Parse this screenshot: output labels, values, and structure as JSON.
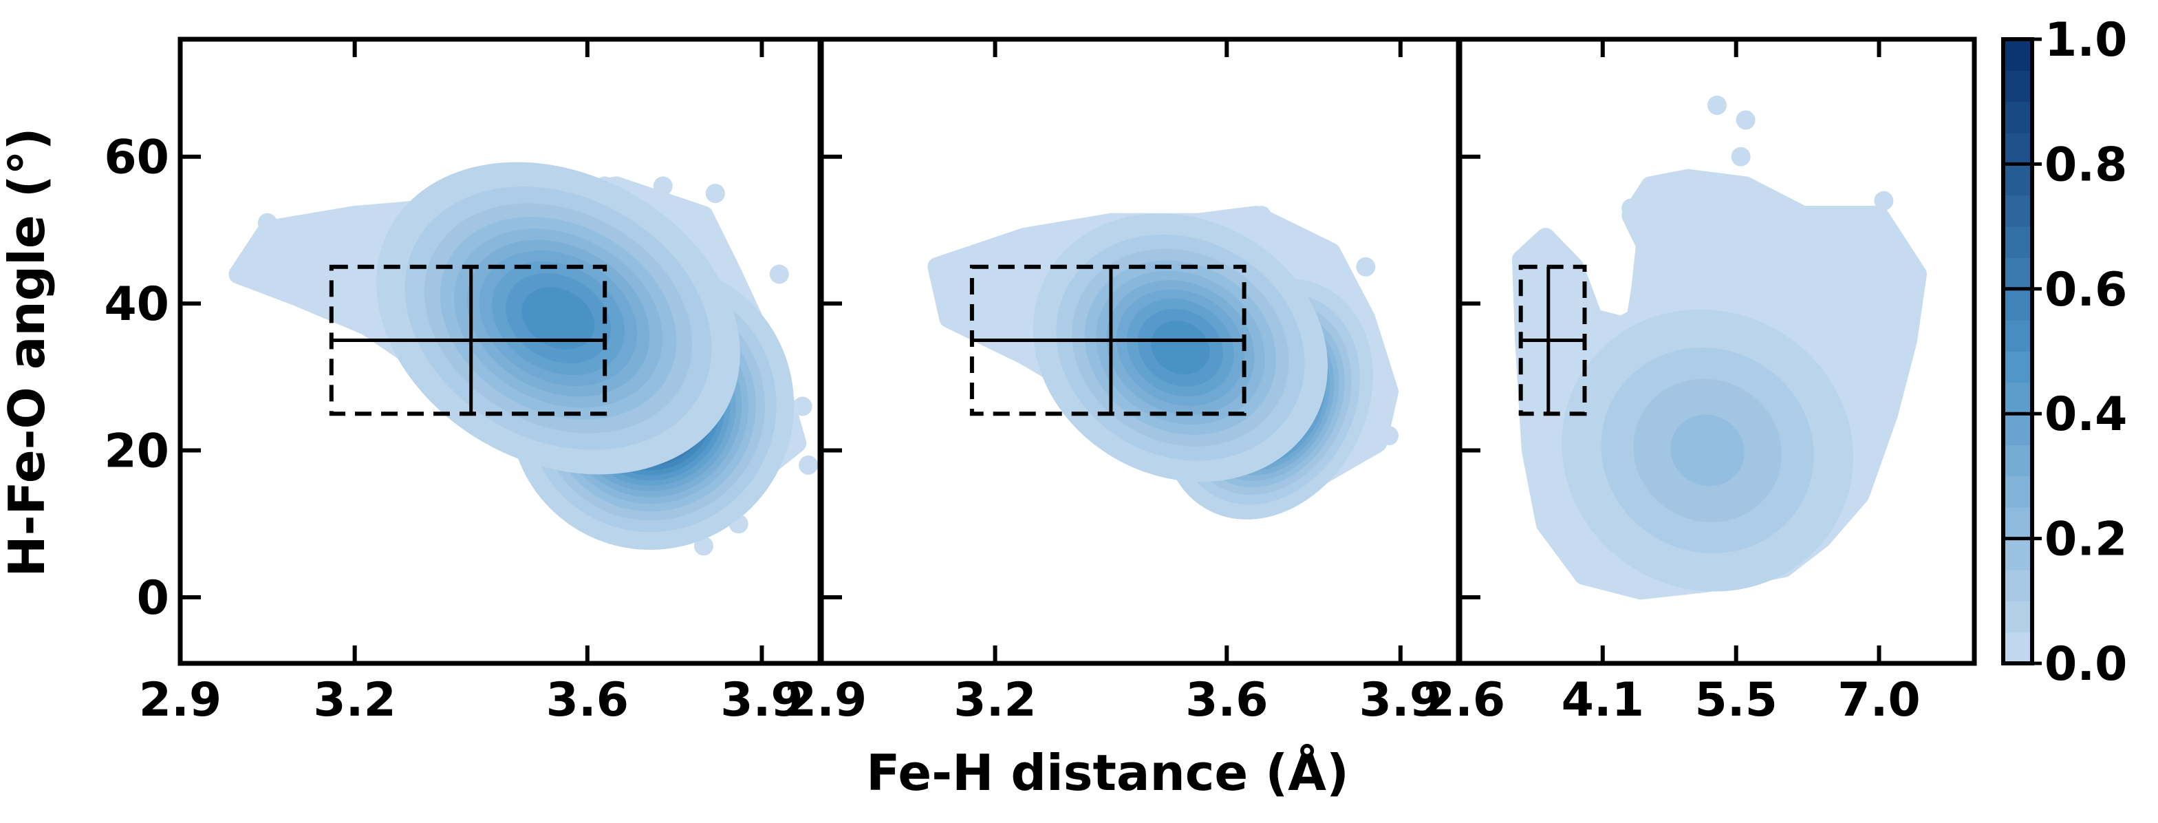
{
  "figure": {
    "xlabel": "Fe-H distance (Å)",
    "ylabel": "H-Fe-O angle (°)"
  },
  "colors": {
    "cmap_low": "#c6dbef",
    "cmap_mid": "#4a92c6",
    "cmap_high": "#08306b",
    "box_line": "#000000"
  },
  "chart_data": [
    {
      "type": "heatmap",
      "panel": 1,
      "xlim": [
        2.9,
        4.0
      ],
      "ylim": [
        -9,
        76
      ],
      "x_ticks": [
        2.9,
        3.2,
        3.6,
        3.9
      ],
      "x_tick_labels": [
        "2.9",
        "3.2",
        "3.6",
        "3.9"
      ],
      "y_ticks": [
        0,
        20,
        40,
        60
      ],
      "y_tick_labels": [
        "0",
        "20",
        "40",
        "60"
      ],
      "envelope": [
        [
          3.0,
          44
        ],
        [
          3.05,
          50
        ],
        [
          3.2,
          52
        ],
        [
          3.35,
          53
        ],
        [
          3.5,
          54
        ],
        [
          3.65,
          56
        ],
        [
          3.8,
          52
        ],
        [
          3.85,
          44
        ],
        [
          3.92,
          32
        ],
        [
          3.96,
          21
        ],
        [
          3.85,
          14
        ],
        [
          3.72,
          11
        ],
        [
          3.6,
          15
        ],
        [
          3.45,
          23
        ],
        [
          3.35,
          30
        ],
        [
          3.22,
          37
        ],
        [
          3.1,
          41
        ]
      ],
      "scatter_points": [
        [
          3.0,
          44
        ],
        [
          3.05,
          51
        ],
        [
          3.63,
          56
        ],
        [
          3.73,
          56
        ],
        [
          3.82,
          55
        ],
        [
          3.93,
          44
        ],
        [
          3.97,
          26
        ],
        [
          3.98,
          18
        ],
        [
          3.86,
          10
        ],
        [
          3.8,
          7
        ],
        [
          3.45,
          23
        ],
        [
          3.55,
          19
        ],
        [
          3.36,
          40
        ]
      ],
      "density_peaks": [
        {
          "x": 3.71,
          "y": 26,
          "density": 1.0,
          "sx": 0.1,
          "sy": 8
        },
        {
          "x": 3.55,
          "y": 38,
          "density": 0.55,
          "sx": 0.15,
          "sy": 9
        }
      ],
      "box": {
        "x_center": 3.4,
        "y_center": 35,
        "x_range": [
          3.16,
          3.63
        ],
        "y_range": [
          25,
          45
        ]
      }
    },
    {
      "type": "heatmap",
      "panel": 2,
      "xlim": [
        2.9,
        4.0
      ],
      "ylim": [
        -9,
        76
      ],
      "x_ticks": [
        2.9,
        3.2,
        3.6,
        3.9
      ],
      "x_tick_labels": [
        "2.9",
        "3.2",
        "3.6",
        "3.9"
      ],
      "y_ticks": [
        0,
        20,
        40,
        60
      ],
      "y_tick_labels": [
        "",
        "",
        "",
        ""
      ],
      "envelope": [
        [
          3.1,
          45
        ],
        [
          3.25,
          49
        ],
        [
          3.4,
          51
        ],
        [
          3.55,
          51
        ],
        [
          3.65,
          52
        ],
        [
          3.78,
          47
        ],
        [
          3.84,
          38
        ],
        [
          3.88,
          28
        ],
        [
          3.86,
          21
        ],
        [
          3.75,
          16
        ],
        [
          3.62,
          15
        ],
        [
          3.5,
          20
        ],
        [
          3.38,
          27
        ],
        [
          3.25,
          33
        ],
        [
          3.12,
          38
        ]
      ],
      "scatter_points": [
        [
          3.1,
          45
        ],
        [
          3.12,
          39
        ],
        [
          3.66,
          52
        ],
        [
          3.84,
          45
        ],
        [
          3.88,
          22
        ],
        [
          3.66,
          15
        ],
        [
          3.28,
          48
        ]
      ],
      "density_peaks": [
        {
          "x": 3.67,
          "y": 27,
          "density": 1.0,
          "sx": 0.07,
          "sy": 7
        },
        {
          "x": 3.52,
          "y": 34,
          "density": 0.55,
          "sx": 0.12,
          "sy": 8
        }
      ],
      "box": {
        "x_center": 3.4,
        "y_center": 35,
        "x_range": [
          3.16,
          3.63
        ],
        "y_range": [
          25,
          45
        ]
      }
    },
    {
      "type": "heatmap",
      "panel": 3,
      "xlim": [
        2.6,
        8.0
      ],
      "ylim": [
        -9,
        76
      ],
      "x_ticks": [
        2.6,
        4.1,
        5.5,
        7.0
      ],
      "x_tick_labels": [
        "2.6",
        "4.1",
        "5.5",
        "7.0"
      ],
      "y_ticks": [
        0,
        20,
        40,
        60
      ],
      "y_tick_labels": [
        "",
        "",
        "",
        ""
      ],
      "envelope": [
        [
          3.25,
          46
        ],
        [
          3.5,
          49
        ],
        [
          3.8,
          45
        ],
        [
          4.0,
          38
        ],
        [
          4.3,
          37
        ],
        [
          4.45,
          38
        ],
        [
          4.5,
          42
        ],
        [
          4.55,
          48
        ],
        [
          4.4,
          52
        ],
        [
          4.6,
          56
        ],
        [
          5.0,
          57
        ],
        [
          5.6,
          56
        ],
        [
          6.2,
          52
        ],
        [
          7.0,
          52
        ],
        [
          7.4,
          44
        ],
        [
          7.3,
          35
        ],
        [
          7.1,
          25
        ],
        [
          6.8,
          14
        ],
        [
          6.4,
          8
        ],
        [
          6.0,
          4
        ],
        [
          5.2,
          2
        ],
        [
          4.5,
          1
        ],
        [
          3.9,
          3
        ],
        [
          3.5,
          10
        ],
        [
          3.35,
          20
        ],
        [
          3.28,
          35
        ]
      ],
      "scatter_points": [
        [
          5.3,
          67
        ],
        [
          5.6,
          65
        ],
        [
          5.55,
          60
        ],
        [
          4.8,
          56
        ],
        [
          5.1,
          56
        ],
        [
          5.7,
          55
        ],
        [
          6.3,
          52
        ],
        [
          7.05,
          54
        ],
        [
          7.3,
          46
        ],
        [
          6.2,
          6
        ],
        [
          3.25,
          46
        ],
        [
          4.4,
          53
        ]
      ],
      "density_peaks": [
        {
          "x": 5.4,
          "y": 16,
          "density": 0.42,
          "sx": 0.35,
          "sy": 4.5
        },
        {
          "x": 5.2,
          "y": 20,
          "density": 0.22,
          "sx": 0.9,
          "sy": 11
        }
      ],
      "box": {
        "x_center": 3.53,
        "y_center": 35,
        "x_range": [
          3.24,
          3.91
        ],
        "y_range": [
          25,
          45
        ]
      }
    }
  ],
  "colorbar": {
    "ticks": [
      0.0,
      0.2,
      0.4,
      0.6,
      0.8,
      1.0
    ],
    "tick_labels": [
      "0.0",
      "0.2",
      "0.4",
      "0.6",
      "0.8",
      "1.0"
    ],
    "levels": 20
  }
}
